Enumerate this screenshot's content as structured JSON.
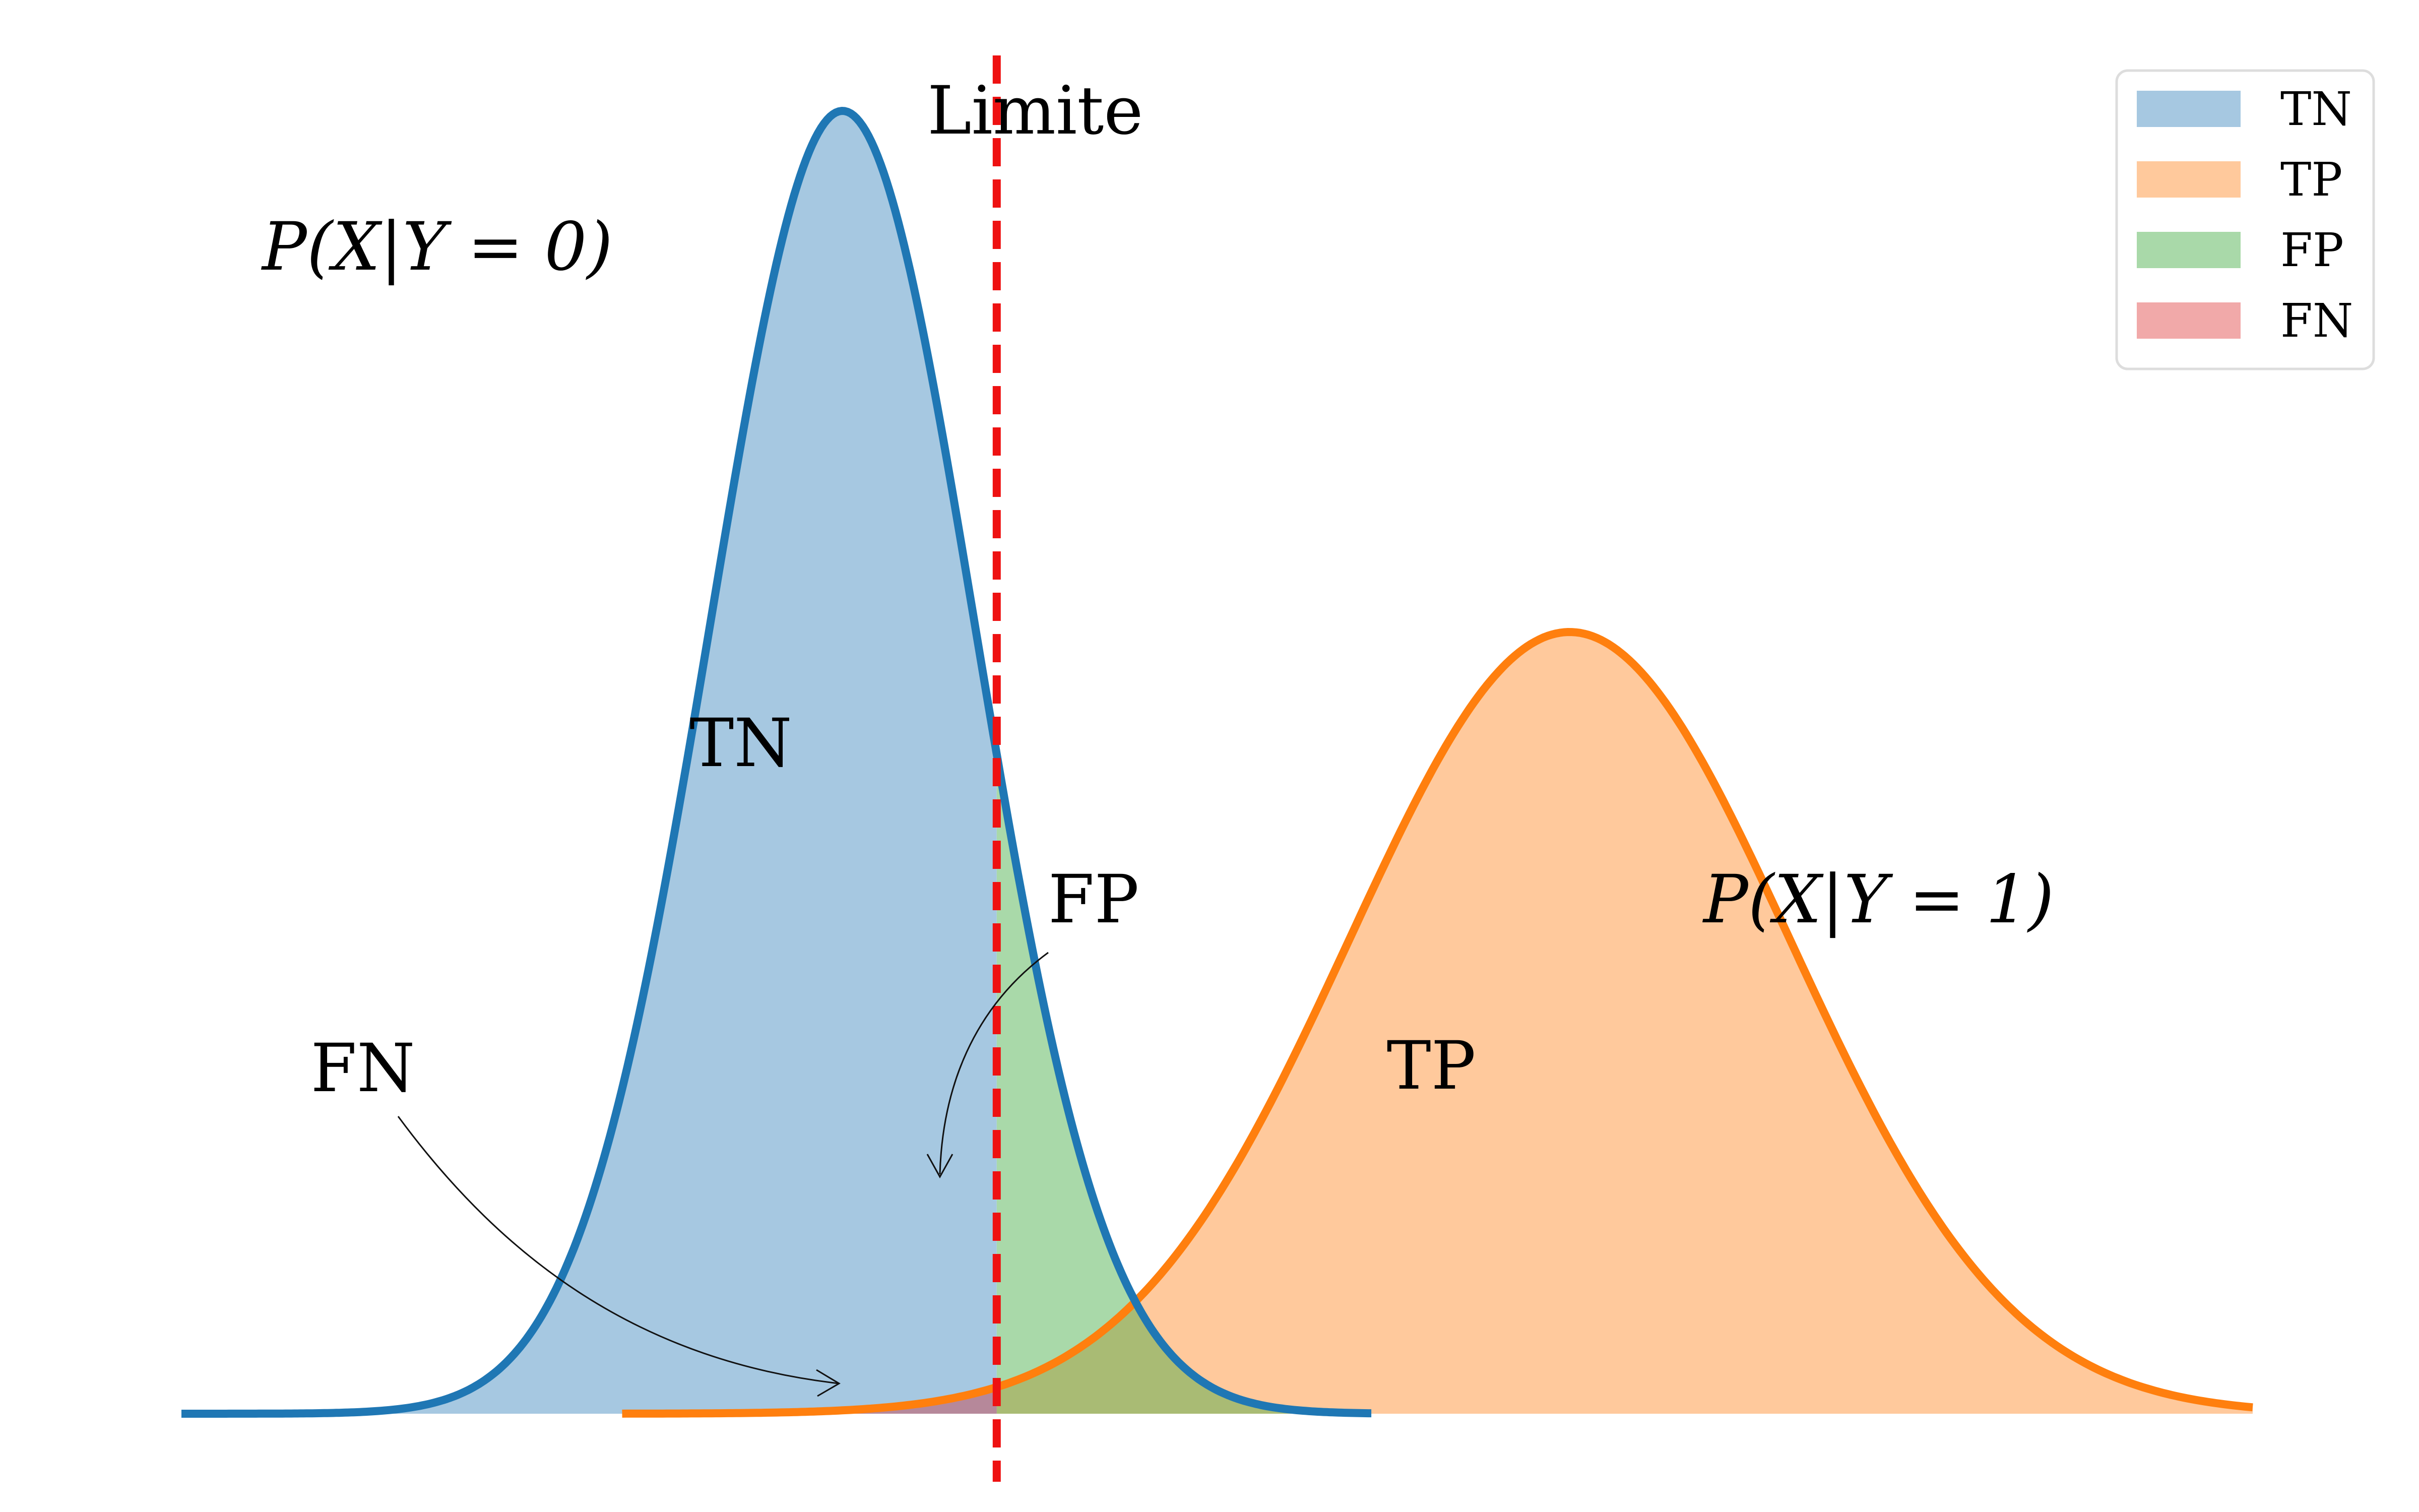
{
  "chart_data": {
    "type": "area",
    "title": "",
    "xlabel": "",
    "ylabel": "",
    "axes_visible": false,
    "grid": false,
    "x_range": [
      -3.0,
      6.4
    ],
    "threshold": {
      "x": 0.7,
      "label": "Limite",
      "color": "#ee1111",
      "style": "dashed"
    },
    "series": [
      {
        "name": "P(X|Y = 0)",
        "distribution": "normal",
        "mean": 0.0,
        "sd": 0.6,
        "x_range": [
          -3.0,
          2.4
        ],
        "color": "#1f77b4",
        "curve_label": "P(X|Y = 0)"
      },
      {
        "name": "P(X|Y = 1)",
        "distribution": "normal",
        "mean": 3.3,
        "sd": 1.0,
        "x_range": [
          -1.0,
          6.4
        ],
        "color": "#ff7f0e",
        "curve_label": "P(X|Y = 1)"
      }
    ],
    "regions": [
      {
        "name": "TN",
        "color": "#a6c8e1",
        "label": "TN"
      },
      {
        "name": "TP",
        "color": "#ffc99c",
        "label": "TP"
      },
      {
        "name": "FP",
        "color": "#a9d9a9",
        "label": "FP"
      },
      {
        "name": "FN",
        "color": "#f1a9a9",
        "label": "FN"
      }
    ],
    "overlap_colors": {
      "fn_region": "#b6889a",
      "fp_tp_overlap": "#a9bb74"
    },
    "legend": {
      "position": "top-right",
      "entries": [
        {
          "label": "TN",
          "color": "#a6c8e1"
        },
        {
          "label": "TP",
          "color": "#ffc99c"
        },
        {
          "label": "FP",
          "color": "#a9d9a9"
        },
        {
          "label": "FN",
          "color": "#f1a9a9"
        }
      ]
    },
    "annotations": [
      {
        "text": "TN",
        "target": "TN"
      },
      {
        "text": "TP",
        "target": "TP"
      },
      {
        "text": "FP",
        "target": "FP",
        "arrow": true
      },
      {
        "text": "FN",
        "target": "FN",
        "arrow": true
      }
    ]
  }
}
